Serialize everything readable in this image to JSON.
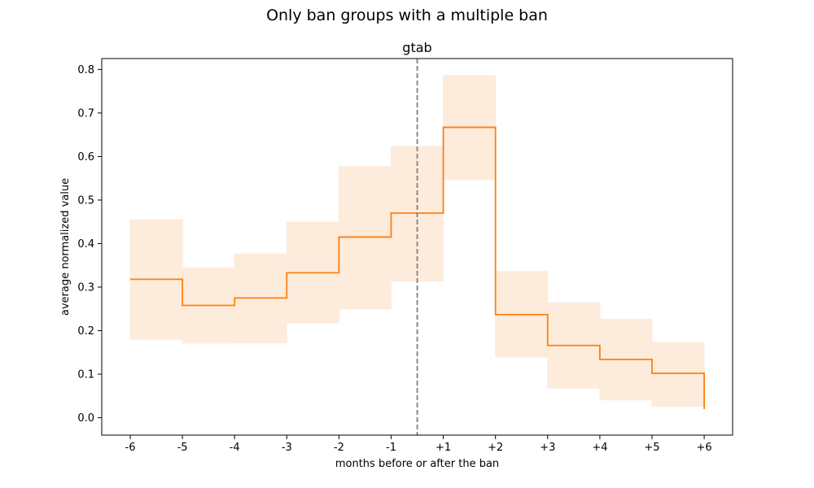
{
  "figure": {
    "suptitle": "Only ban groups with a multiple ban"
  },
  "chart_data": {
    "type": "line",
    "subtype": "step",
    "title": "gtab",
    "xlabel": "months before or after the ban",
    "ylabel": "average normalized value",
    "x_tick_labels": [
      "-6",
      "-5",
      "-4",
      "-3",
      "-2",
      "-1",
      "+1",
      "+2",
      "+3",
      "+4",
      "+5",
      "+6"
    ],
    "y_ticks": [
      0.0,
      0.1,
      0.2,
      0.3,
      0.4,
      0.5,
      0.6,
      0.7,
      0.8
    ],
    "y_tick_labels": [
      "0.0",
      "0.1",
      "0.2",
      "0.3",
      "0.4",
      "0.5",
      "0.6",
      "0.7",
      "0.8"
    ],
    "ylim": [
      -0.04,
      0.825
    ],
    "grid": false,
    "legend": null,
    "ban_marker": {
      "between": [
        "-1",
        "+1"
      ],
      "style": "dashed",
      "color": "#808080"
    },
    "series": [
      {
        "x": [
          "-6",
          "-5",
          "-4",
          "-3",
          "-2",
          "-1",
          "+1",
          "+2",
          "+3",
          "+4",
          "+5",
          "+6"
        ],
        "values": [
          0.318,
          0.258,
          0.275,
          0.333,
          0.415,
          0.47,
          0.667,
          0.237,
          0.166,
          0.134,
          0.102,
          0.02
        ],
        "ci_low": [
          0.18,
          0.171,
          0.172,
          0.218,
          0.25,
          0.314,
          0.547,
          0.139,
          0.068,
          0.041,
          0.026,
          0.0
        ],
        "ci_high": [
          0.455,
          0.344,
          0.376,
          0.449,
          0.577,
          0.623,
          0.786,
          0.336,
          0.264,
          0.226,
          0.173,
          0.02
        ],
        "color": "#ff7f0e",
        "band_color": "#fdebdc"
      }
    ]
  }
}
